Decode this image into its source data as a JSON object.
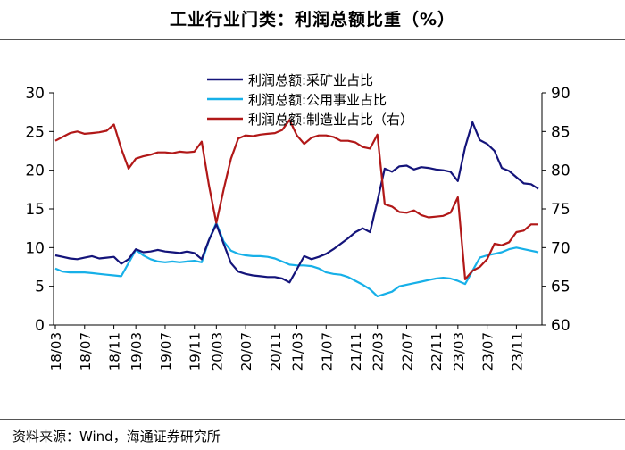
{
  "title": "工业行业门类：利润总额比重（%）",
  "source": "资料来源：Wind，海通证券研究所",
  "chart_data": {
    "type": "line",
    "title": "工业行业门类：利润总额比重（%）",
    "x_tick_labels": [
      "18/03",
      "18/07",
      "18/11",
      "19/03",
      "19/07",
      "19/11",
      "20/03",
      "20/07",
      "20/11",
      "21/03",
      "21/07",
      "21/11",
      "22/03",
      "22/07",
      "22/11",
      "23/03",
      "23/07",
      "23/11"
    ],
    "x_tick_index": [
      0,
      4,
      8,
      11,
      15,
      19,
      22,
      26,
      30,
      33,
      37,
      41,
      44,
      48,
      52,
      55,
      59,
      63
    ],
    "y_left": {
      "min": 0,
      "max": 30,
      "ticks": [
        0,
        5,
        10,
        15,
        20,
        25,
        30
      ]
    },
    "y_right": {
      "min": 60,
      "max": 90,
      "ticks": [
        60,
        65,
        70,
        75,
        80,
        85,
        90
      ]
    },
    "legend_position": "top-center",
    "series": [
      {
        "name": "利润总额:采矿业占比",
        "axis": "left",
        "color": "#14147a",
        "values": [
          9.0,
          8.8,
          8.6,
          8.5,
          8.7,
          8.9,
          8.6,
          8.7,
          8.8,
          7.9,
          8.5,
          9.8,
          9.4,
          9.5,
          9.7,
          9.5,
          9.4,
          9.3,
          9.5,
          9.3,
          8.5,
          11.0,
          13.0,
          10.5,
          8.0,
          6.9,
          6.6,
          6.4,
          6.3,
          6.2,
          6.2,
          6.0,
          5.5,
          7.2,
          8.9,
          8.5,
          8.8,
          9.2,
          9.8,
          10.5,
          11.2,
          12.0,
          12.5,
          12.0,
          16.0,
          20.2,
          19.8,
          20.5,
          20.6,
          20.1,
          20.4,
          20.3,
          20.1,
          20.0,
          19.8,
          18.6,
          23.0,
          26.2,
          23.9,
          23.4,
          22.5,
          20.3,
          19.9,
          19.1,
          18.3,
          18.2,
          17.6
        ]
      },
      {
        "name": "利润总额:公用事业占比",
        "axis": "left",
        "color": "#17b0e8",
        "values": [
          7.3,
          6.9,
          6.8,
          6.8,
          6.8,
          6.7,
          6.6,
          6.5,
          6.4,
          6.3,
          8.0,
          9.7,
          9.0,
          8.5,
          8.2,
          8.1,
          8.2,
          8.1,
          8.2,
          8.3,
          8.1,
          11.0,
          13.2,
          10.8,
          9.6,
          9.2,
          9.0,
          8.9,
          8.9,
          8.8,
          8.6,
          8.2,
          7.8,
          7.7,
          7.7,
          7.6,
          7.3,
          6.8,
          6.6,
          6.5,
          6.2,
          5.7,
          5.2,
          4.6,
          3.7,
          4.0,
          4.3,
          5.0,
          5.2,
          5.4,
          5.6,
          5.8,
          6.0,
          6.1,
          6.0,
          5.7,
          5.3,
          7.0,
          8.7,
          9.0,
          9.2,
          9.4,
          9.8,
          10.0,
          9.8,
          9.6,
          9.4
        ]
      },
      {
        "name": "利润总额:制造业占比（右）",
        "axis": "right",
        "color": "#b11818",
        "values": [
          83.8,
          84.3,
          84.8,
          85.0,
          84.7,
          84.8,
          84.9,
          85.1,
          85.9,
          82.8,
          80.2,
          81.5,
          81.8,
          82.0,
          82.3,
          82.3,
          82.2,
          82.4,
          82.3,
          82.4,
          83.7,
          78.0,
          73.2,
          77.5,
          81.5,
          84.1,
          84.5,
          84.4,
          84.6,
          84.7,
          84.8,
          85.2,
          86.5,
          84.5,
          83.4,
          84.2,
          84.5,
          84.5,
          84.3,
          83.8,
          83.8,
          83.6,
          83.0,
          82.8,
          84.6,
          75.6,
          75.3,
          74.6,
          74.5,
          74.8,
          74.2,
          73.9,
          74.0,
          74.1,
          74.5,
          76.5,
          65.9,
          67.0,
          67.5,
          68.5,
          70.5,
          70.3,
          70.7,
          72.0,
          72.2,
          73.0,
          73.0
        ]
      }
    ]
  }
}
